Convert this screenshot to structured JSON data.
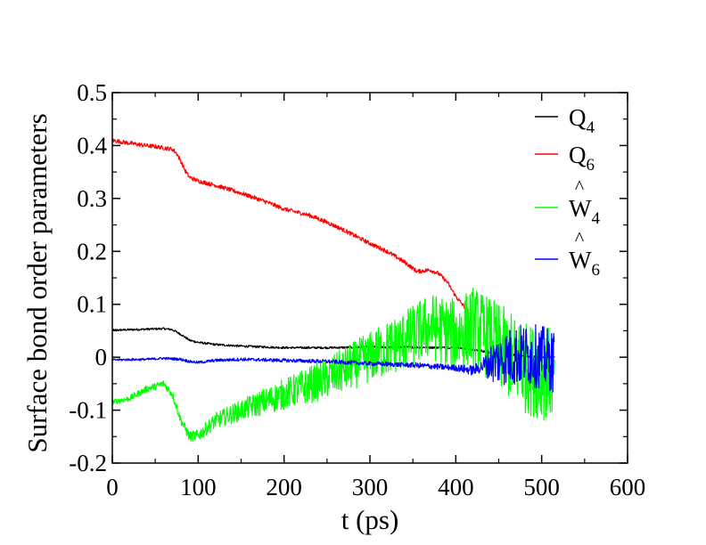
{
  "chart_data": {
    "type": "line",
    "xlabel": "t (ps)",
    "ylabel": "Surface bond order parameters",
    "xlim": [
      0,
      600
    ],
    "ylim": [
      -0.2,
      0.5
    ],
    "xticks": [
      "0",
      "100",
      "200",
      "300",
      "400",
      "500",
      "600"
    ],
    "yticks": [
      "-0.2",
      "-0.1",
      "0",
      "0.1",
      "0.2",
      "0.3",
      "0.4",
      "0.5"
    ],
    "grid": false,
    "legend_position": "top-right",
    "series": [
      {
        "name": "Q4",
        "label_main": "Q",
        "label_sub": "4",
        "hat": false,
        "color": "#000000",
        "noise": 0.002,
        "x": [
          0,
          20,
          40,
          60,
          70,
          80,
          90,
          100,
          120,
          150,
          200,
          250,
          300,
          350,
          400,
          430,
          450,
          480,
          500,
          515
        ],
        "y": [
          0.051,
          0.052,
          0.053,
          0.054,
          0.052,
          0.043,
          0.032,
          0.028,
          0.024,
          0.021,
          0.018,
          0.018,
          0.019,
          0.019,
          0.018,
          0.012,
          0.006,
          0.002,
          0.0,
          0.0
        ]
      },
      {
        "name": "Q6",
        "label_main": "Q",
        "label_sub": "6",
        "hat": false,
        "color": "#ff0000",
        "noise": 0.004,
        "x": [
          0,
          10,
          30,
          50,
          70,
          75,
          80,
          85,
          90,
          100,
          120,
          150,
          180,
          200,
          230,
          250,
          270,
          300,
          320,
          340,
          355,
          370,
          380,
          390,
          400,
          410,
          415
        ],
        "y": [
          0.41,
          0.407,
          0.402,
          0.398,
          0.393,
          0.385,
          0.37,
          0.352,
          0.34,
          0.333,
          0.325,
          0.31,
          0.293,
          0.28,
          0.268,
          0.255,
          0.24,
          0.215,
          0.2,
          0.18,
          0.162,
          0.165,
          0.158,
          0.142,
          0.115,
          0.095,
          0.085
        ]
      },
      {
        "name": "W4",
        "label_main": "W",
        "label_sub": "4",
        "hat": true,
        "color": "#00ff00",
        "x": [
          0,
          20,
          40,
          60,
          70,
          80,
          90,
          100,
          120,
          150,
          200,
          250,
          300,
          350,
          370,
          400,
          420,
          450,
          480,
          500,
          515
        ],
        "y": [
          -0.085,
          -0.078,
          -0.06,
          -0.05,
          -0.07,
          -0.12,
          -0.15,
          -0.148,
          -0.12,
          -0.1,
          -0.07,
          -0.04,
          0.0,
          0.04,
          0.06,
          0.04,
          0.06,
          0.02,
          -0.02,
          -0.03,
          -0.03
        ],
        "noise_x": [
          0,
          80,
          150,
          230,
          280,
          330,
          380,
          420,
          460,
          515
        ],
        "noise_amp": [
          0.005,
          0.008,
          0.02,
          0.035,
          0.045,
          0.055,
          0.065,
          0.075,
          0.085,
          0.09
        ]
      },
      {
        "name": "W6",
        "label_main": "W",
        "label_sub": "6",
        "hat": true,
        "color": "#0000ff",
        "x": [
          0,
          40,
          60,
          80,
          90,
          100,
          120,
          150,
          200,
          250,
          300,
          350,
          400,
          420,
          440,
          460,
          480,
          500,
          515
        ],
        "y": [
          -0.005,
          -0.004,
          -0.002,
          -0.004,
          -0.008,
          -0.01,
          -0.006,
          -0.004,
          -0.006,
          -0.008,
          -0.012,
          -0.015,
          -0.02,
          -0.025,
          -0.01,
          0.0,
          0.005,
          0.0,
          -0.01
        ],
        "noise_x": [
          0,
          300,
          400,
          430,
          445,
          470,
          515
        ],
        "noise_amp": [
          0.002,
          0.004,
          0.006,
          0.012,
          0.045,
          0.06,
          0.06
        ]
      }
    ]
  }
}
